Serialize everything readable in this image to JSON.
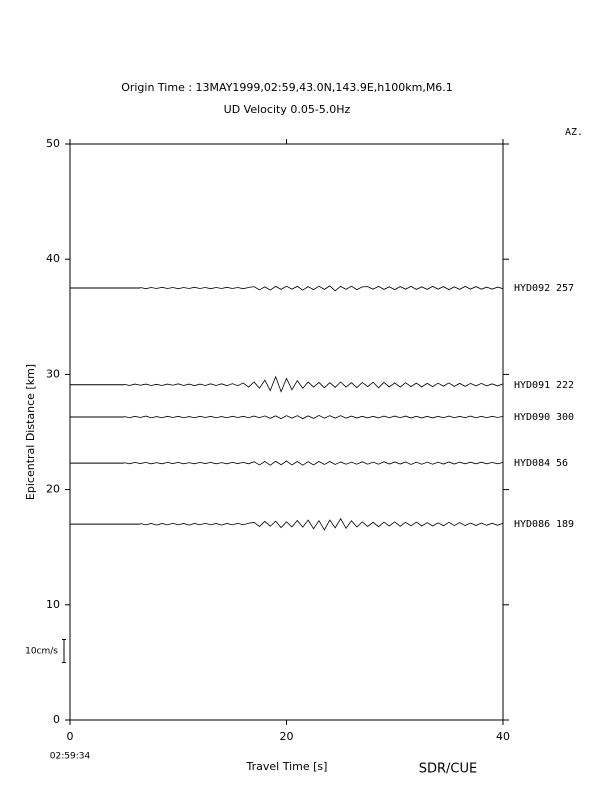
{
  "chart_data": {
    "type": "record-section",
    "title": "Origin Time : 13MAY1999,02:59,43.0N,143.9E,h100km,M6.1",
    "subtitle": "UD Velocity 0.05-5.0Hz",
    "azimuth_header": "AZ.",
    "x_label": "Travel Time [s]",
    "y_label": "Epicentral Distance [km]",
    "start_time": "02:59:34",
    "credit": "SDR/CUE",
    "amplitude_scale": {
      "value": 10,
      "label": "10cm/s"
    },
    "xlim": [
      0,
      40
    ],
    "xticks": [
      0,
      20,
      40
    ],
    "ylim": [
      0,
      50
    ],
    "yticks": [
      0,
      10,
      20,
      30,
      40,
      50
    ],
    "color": "#000000",
    "x": [
      5,
      5.5,
      6,
      6.5,
      7,
      7.5,
      8,
      8.5,
      9,
      9.5,
      10,
      10.5,
      11,
      11.5,
      12,
      12.5,
      13,
      13.5,
      14,
      14.5,
      15,
      15.5,
      16,
      16.5,
      17,
      17.5,
      18,
      18.5,
      19,
      19.5,
      20,
      20.5,
      21,
      21.5,
      22,
      22.5,
      23,
      23.5,
      24,
      24.5,
      25,
      25.5,
      26,
      26.5,
      27,
      27.5,
      28,
      28.5,
      29,
      29.5,
      30,
      30.5,
      31,
      31.5,
      32,
      32.5,
      33,
      33.5,
      34,
      34.5,
      35,
      35.5,
      36,
      36.5,
      37,
      37.5,
      38,
      38.5,
      39,
      39.5,
      40
    ],
    "series": [
      {
        "name": "HYD092",
        "azimuth": 257,
        "distance": 37.5,
        "values": [
          null,
          null,
          null,
          0.2,
          -0.3,
          0.2,
          -0.2,
          0.3,
          -0.2,
          0.2,
          -0.3,
          0.2,
          -0.2,
          0.3,
          -0.2,
          0.2,
          -0.3,
          0.2,
          -0.2,
          0.3,
          -0.2,
          0.2,
          -0.3,
          0.2,
          0.6,
          -0.8,
          0.5,
          -0.9,
          0.7,
          -0.6,
          0.8,
          -0.5,
          0.7,
          -0.9,
          0.6,
          -0.7,
          0.8,
          -0.6,
          0.9,
          -1.2,
          0.7,
          -0.6,
          0.8,
          -0.7,
          0.5,
          0.6,
          -0.5,
          0.7,
          -0.6,
          0.5,
          -0.7,
          0.6,
          -0.5,
          0.7,
          -0.6,
          0.5,
          -0.6,
          0.7,
          -0.5,
          0.6,
          -0.7,
          0.5,
          -0.6,
          0.7,
          -0.5,
          0.6,
          -0.5,
          0.4,
          -0.5,
          0.4,
          -0.3
        ]
      },
      {
        "name": "HYD091",
        "azimuth": 222,
        "distance": 29.1,
        "values": [
          0.2,
          -0.3,
          0.3,
          -0.2,
          0.3,
          -0.3,
          0.2,
          -0.3,
          0.3,
          -0.2,
          0.4,
          -0.3,
          0.3,
          -0.4,
          0.3,
          -0.3,
          0.4,
          -0.3,
          0.4,
          -0.4,
          0.5,
          -0.4,
          0.8,
          -1.0,
          1.2,
          -1.5,
          2.0,
          -2.5,
          3.5,
          -3.0,
          2.8,
          -2.2,
          1.8,
          -1.5,
          1.2,
          -1.0,
          1.0,
          -1.3,
          0.9,
          -1.1,
          1.2,
          -1.0,
          0.9,
          -1.2,
          1.0,
          -0.8,
          1.1,
          -1.3,
          1.0,
          -0.9,
          0.8,
          -1.0,
          0.9,
          -0.8,
          0.7,
          -0.9,
          0.6,
          -0.8,
          0.7,
          -0.6,
          0.8,
          -0.7,
          0.6,
          -0.7,
          0.6,
          -0.5,
          0.6,
          -0.5,
          0.4,
          -0.5,
          0.4
        ]
      },
      {
        "name": "HYD090",
        "azimuth": 300,
        "distance": 26.3,
        "values": [
          0.2,
          -0.3,
          0.3,
          -0.2,
          0.4,
          -0.3,
          0.2,
          -0.3,
          0.3,
          -0.2,
          0.3,
          -0.3,
          0.2,
          -0.3,
          0.3,
          -0.2,
          0.3,
          -0.3,
          0.2,
          -0.3,
          0.3,
          -0.2,
          0.3,
          -0.3,
          0.4,
          -0.3,
          0.5,
          -0.6,
          0.5,
          -0.7,
          0.6,
          -0.5,
          0.6,
          -0.7,
          0.5,
          -0.6,
          0.7,
          -0.5,
          0.6,
          -0.5,
          0.6,
          -0.5,
          0.4,
          -0.4,
          0.3,
          -0.4,
          0.3,
          -0.4,
          0.4,
          -0.3,
          0.4,
          -0.3,
          0.4,
          -0.4,
          0.3,
          -0.4,
          0.3,
          -0.4,
          0.3,
          -0.3,
          0.4,
          -0.3,
          0.3,
          -0.3,
          0.4,
          -0.3,
          0.3,
          -0.3,
          0.3,
          -0.2,
          0.3
        ]
      },
      {
        "name": "HYD084",
        "azimuth": 56,
        "distance": 22.3,
        "values": [
          0.2,
          -0.3,
          0.3,
          -0.2,
          0.3,
          -0.3,
          0.2,
          -0.3,
          0.3,
          -0.2,
          0.3,
          -0.3,
          0.2,
          -0.3,
          0.3,
          -0.2,
          0.3,
          -0.3,
          0.2,
          -0.3,
          0.3,
          -0.2,
          0.3,
          -0.3,
          0.6,
          -0.8,
          0.7,
          -0.9,
          0.8,
          -0.7,
          0.9,
          -0.8,
          0.7,
          -0.9,
          0.6,
          -0.8,
          0.7,
          -0.6,
          0.7,
          -0.6,
          0.5,
          -0.5,
          0.4,
          -0.5,
          0.6,
          -0.5,
          0.4,
          -0.5,
          0.6,
          -0.4,
          0.5,
          -0.4,
          0.5,
          -0.6,
          0.4,
          -0.5,
          0.4,
          -0.5,
          0.4,
          -0.4,
          0.5,
          -0.4,
          0.4,
          -0.3,
          0.4,
          -0.3,
          0.4,
          -0.3,
          0.3,
          -0.3,
          0.3
        ]
      },
      {
        "name": "HYD086",
        "azimuth": 189,
        "distance": 17.0,
        "values": [
          null,
          null,
          null,
          0.3,
          -0.3,
          0.3,
          -0.4,
          0.3,
          -0.3,
          0.4,
          -0.3,
          0.3,
          -0.4,
          0.3,
          -0.3,
          0.4,
          -0.3,
          0.3,
          -0.4,
          0.3,
          -0.3,
          0.4,
          -0.3,
          0.4,
          0.8,
          -1.0,
          1.2,
          -0.9,
          1.3,
          -1.5,
          1.0,
          -1.2,
          1.6,
          -1.3,
          1.8,
          -2.0,
          1.5,
          -2.5,
          1.8,
          -1.6,
          2.4,
          -1.8,
          1.5,
          -1.2,
          1.0,
          -1.0,
          0.8,
          -1.1,
          0.9,
          -0.8,
          1.0,
          -0.9,
          0.8,
          -0.7,
          0.9,
          -0.8,
          0.7,
          -0.8,
          0.6,
          -0.7,
          0.8,
          -0.6,
          0.7,
          -0.6,
          0.5,
          -0.6,
          0.5,
          -0.5,
          0.4,
          -0.5,
          0.4
        ]
      }
    ]
  }
}
